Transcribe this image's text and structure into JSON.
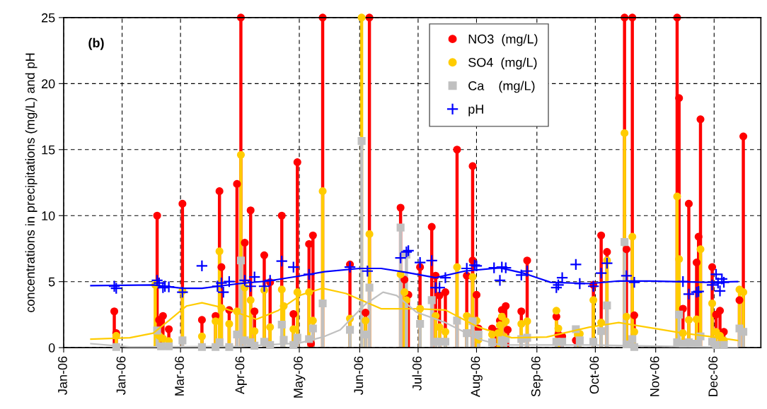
{
  "chart_data": {
    "type": "lollipop",
    "ylabel": "concentrations in precipitations (mg/L) and pH",
    "annotations": [
      "(b)"
    ],
    "xlim": [
      "2006-01-01",
      "2006-12-25"
    ],
    "ylim": [
      0,
      25
    ],
    "xticks": [
      {
        "value": "2006-01-01",
        "label": "Jan-06"
      },
      {
        "value": "2006-01-31",
        "label": "Jan-06"
      },
      {
        "value": "2006-03-02",
        "label": "Mar-06"
      },
      {
        "value": "2006-04-02",
        "label": "Apr-06"
      },
      {
        "value": "2006-05-02",
        "label": "May-06"
      },
      {
        "value": "2006-06-02",
        "label": "Jun-06"
      },
      {
        "value": "2006-07-02",
        "label": "Jul-06"
      },
      {
        "value": "2006-08-01",
        "label": "Aug-06"
      },
      {
        "value": "2006-09-01",
        "label": "Sep-06"
      },
      {
        "value": "2006-10-01",
        "label": "Oct-06"
      },
      {
        "value": "2006-11-01",
        "label": "Nov-06"
      },
      {
        "value": "2006-12-01",
        "label": "Dec-06"
      }
    ],
    "yticks": [
      0,
      5,
      10,
      15,
      20,
      25
    ],
    "grid": true,
    "legend": "top",
    "series": [
      {
        "name": "NO3  (mg/L)",
        "marker": "circle",
        "color": "#ff0000",
        "x": [
          "2006-01-27",
          "2006-01-28",
          "2006-02-18",
          "2006-02-19",
          "2006-02-20",
          "2006-02-21",
          "2006-02-24",
          "2006-03-03",
          "2006-03-13",
          "2006-03-20",
          "2006-03-22",
          "2006-03-23",
          "2006-03-27",
          "2006-03-31",
          "2006-04-02",
          "2006-04-04",
          "2006-04-07",
          "2006-04-09",
          "2006-04-14",
          "2006-04-17",
          "2006-04-23",
          "2006-04-29",
          "2006-05-01",
          "2006-05-07",
          "2006-05-08",
          "2006-05-09",
          "2006-05-14",
          "2006-05-28",
          "2006-06-05",
          "2006-06-07",
          "2006-06-23",
          "2006-06-25",
          "2006-06-27",
          "2006-07-03",
          "2006-07-09",
          "2006-07-11",
          "2006-07-13",
          "2006-07-16",
          "2006-07-22",
          "2006-07-27",
          "2006-07-30",
          "2006-07-30",
          "2006-08-01",
          "2006-08-02",
          "2006-08-09",
          "2006-08-11",
          "2006-08-13",
          "2006-08-14",
          "2006-08-16",
          "2006-08-17",
          "2006-08-24",
          "2006-08-27",
          "2006-09-11",
          "2006-09-12",
          "2006-09-14",
          "2006-09-21",
          "2006-09-30",
          "2006-10-04",
          "2006-10-07",
          "2006-10-16",
          "2006-10-17",
          "2006-10-20",
          "2006-10-21",
          "2006-11-12",
          "2006-11-13",
          "2006-11-15",
          "2006-11-18",
          "2006-11-22",
          "2006-11-23",
          "2006-11-24",
          "2006-11-30",
          "2006-12-02",
          "2006-12-04",
          "2006-12-06",
          "2006-12-14",
          "2006-12-16"
        ],
        "values": [
          2.75,
          1.1,
          10.0,
          2.1,
          2.0,
          2.4,
          1.4,
          10.9,
          2.1,
          2.4,
          11.85,
          6.1,
          2.85,
          12.4,
          25,
          7.95,
          10.4,
          2.75,
          7.0,
          4.95,
          10.0,
          2.55,
          14.05,
          7.85,
          0.3,
          8.5,
          25,
          6.3,
          2.65,
          25,
          10.6,
          5.15,
          4.0,
          6.1,
          9.15,
          5.45,
          3.95,
          4.2,
          15.0,
          5.45,
          13.75,
          6.6,
          4.0,
          1.45,
          1.45,
          1.2,
          2.05,
          2.85,
          3.15,
          1.35,
          2.75,
          6.6,
          2.35,
          1.0,
          0.85,
          0.55,
          4.75,
          8.5,
          7.25,
          25,
          7.45,
          25,
          2.45,
          25,
          18.9,
          2.95,
          10.9,
          6.45,
          8.4,
          17.3,
          6.1,
          2.5,
          2.8,
          1.2,
          3.6,
          16.0
        ]
      },
      {
        "name": "SO4  (mg/L)",
        "marker": "circle",
        "color": "#ffcc00",
        "x": [
          "2006-01-28",
          "2006-02-17",
          "2006-02-19",
          "2006-02-21",
          "2006-02-24",
          "2006-03-03",
          "2006-03-13",
          "2006-03-20",
          "2006-03-22",
          "2006-03-23",
          "2006-03-27",
          "2006-03-31",
          "2006-04-02",
          "2006-04-04",
          "2006-04-07",
          "2006-04-09",
          "2006-04-14",
          "2006-04-17",
          "2006-04-23",
          "2006-04-24",
          "2006-04-29",
          "2006-05-01",
          "2006-05-07",
          "2006-05-09",
          "2006-05-14",
          "2006-05-28",
          "2006-06-03",
          "2006-06-05",
          "2006-06-07",
          "2006-06-23",
          "2006-06-25",
          "2006-06-26",
          "2006-07-03",
          "2006-07-11",
          "2006-07-13",
          "2006-07-16",
          "2006-07-22",
          "2006-07-27",
          "2006-07-30",
          "2006-08-01",
          "2006-08-02",
          "2006-08-09",
          "2006-08-12",
          "2006-08-13",
          "2006-08-14",
          "2006-08-16",
          "2006-08-24",
          "2006-08-27",
          "2006-09-11",
          "2006-09-12",
          "2006-09-22",
          "2006-09-23",
          "2006-09-30",
          "2006-10-04",
          "2006-10-07",
          "2006-10-16",
          "2006-10-17",
          "2006-10-20",
          "2006-10-21",
          "2006-11-12",
          "2006-11-13",
          "2006-11-15",
          "2006-11-18",
          "2006-11-22",
          "2006-11-24",
          "2006-11-30",
          "2006-12-02",
          "2006-12-04",
          "2006-12-06",
          "2006-12-14",
          "2006-12-16"
        ],
        "values": [
          0.9,
          4.75,
          0.9,
          0.7,
          0.5,
          4.3,
          0.85,
          2.0,
          7.3,
          3.0,
          1.8,
          2.75,
          14.6,
          4.55,
          3.6,
          1.25,
          4.35,
          1.55,
          4.4,
          3.15,
          1.4,
          4.2,
          4.2,
          2.05,
          11.85,
          2.2,
          25,
          2.05,
          8.6,
          5.55,
          4.2,
          3.6,
          2.95,
          2.4,
          1.55,
          1.2,
          6.1,
          2.4,
          5.35,
          2.05,
          0.6,
          1.0,
          1.1,
          1.7,
          2.35,
          2.0,
          1.8,
          2.0,
          2.8,
          1.45,
          1.0,
          1.05,
          3.6,
          1.9,
          6.6,
          16.25,
          2.35,
          8.4,
          1.2,
          11.45,
          6.7,
          1.1,
          2.1,
          2.15,
          7.45,
          3.35,
          1.2,
          0.9,
          0.55,
          4.4,
          4.2
        ]
      },
      {
        "name": "Ca    (mg/L)",
        "marker": "square",
        "color": "#c0c0c0",
        "x": [
          "2006-01-28",
          "2006-02-18",
          "2006-02-20",
          "2006-02-24",
          "2006-03-03",
          "2006-03-13",
          "2006-03-20",
          "2006-03-22",
          "2006-03-27",
          "2006-03-31",
          "2006-04-02",
          "2006-04-04",
          "2006-04-07",
          "2006-04-09",
          "2006-04-14",
          "2006-04-17",
          "2006-04-23",
          "2006-04-24",
          "2006-04-29",
          "2006-05-01",
          "2006-05-07",
          "2006-05-09",
          "2006-05-14",
          "2006-05-28",
          "2006-06-03",
          "2006-06-05",
          "2006-06-07",
          "2006-06-23",
          "2006-06-26",
          "2006-07-03",
          "2006-07-09",
          "2006-07-11",
          "2006-07-13",
          "2006-07-16",
          "2006-07-22",
          "2006-07-27",
          "2006-07-30",
          "2006-08-02",
          "2006-08-09",
          "2006-08-14",
          "2006-08-16",
          "2006-08-24",
          "2006-08-27",
          "2006-09-11",
          "2006-09-14",
          "2006-09-21",
          "2006-09-23",
          "2006-09-30",
          "2006-10-04",
          "2006-10-07",
          "2006-10-16",
          "2006-10-17",
          "2006-10-20",
          "2006-10-21",
          "2006-11-12",
          "2006-11-13",
          "2006-11-15",
          "2006-11-18",
          "2006-11-22",
          "2006-11-24",
          "2006-11-30",
          "2006-12-02",
          "2006-12-06",
          "2006-12-14",
          "2006-12-16"
        ],
        "values": [
          0.05,
          1.3,
          0.1,
          0.1,
          0.55,
          0.05,
          0.05,
          0.4,
          0.05,
          1.0,
          6.6,
          0.55,
          0.4,
          0.15,
          0.45,
          0.2,
          1.75,
          0.6,
          0.2,
          0.75,
          0.65,
          1.45,
          3.35,
          1.35,
          15.65,
          1.0,
          4.55,
          9.1,
          7.05,
          1.8,
          3.6,
          0.45,
          0.45,
          0.45,
          2.05,
          1.1,
          2.0,
          1.0,
          0.4,
          0.55,
          0.65,
          0.65,
          0.75,
          0.45,
          0.45,
          1.4,
          0.55,
          0.45,
          1.25,
          3.2,
          8.0,
          0.25,
          0.65,
          0.05,
          0.4,
          2.5,
          0.3,
          0.4,
          0.3,
          0.85,
          0.45,
          0.2,
          0.2,
          1.45,
          1.2
        ]
      },
      {
        "name": "pH",
        "type": "scatter",
        "marker": "cross",
        "color": "#0000ff",
        "x": [
          "2006-01-27",
          "2006-01-28",
          "2006-02-18",
          "2006-02-19",
          "2006-02-21",
          "2006-02-22",
          "2006-02-24",
          "2006-03-03",
          "2006-03-13",
          "2006-03-21",
          "2006-03-23",
          "2006-03-24",
          "2006-03-27",
          "2006-04-04",
          "2006-04-07",
          "2006-04-09",
          "2006-04-14",
          "2006-04-17",
          "2006-04-23",
          "2006-04-29",
          "2006-05-07",
          "2006-05-28",
          "2006-06-06",
          "2006-06-23",
          "2006-06-26",
          "2006-06-27",
          "2006-07-03",
          "2006-07-09",
          "2006-07-11",
          "2006-07-13",
          "2006-07-16",
          "2006-07-27",
          "2006-07-31",
          "2006-08-01",
          "2006-08-10",
          "2006-08-13",
          "2006-08-14",
          "2006-08-16",
          "2006-08-24",
          "2006-08-27",
          "2006-09-11",
          "2006-09-12",
          "2006-09-14",
          "2006-09-21",
          "2006-09-23",
          "2006-09-30",
          "2006-10-04",
          "2006-10-07",
          "2006-10-17",
          "2006-10-21",
          "2006-11-15",
          "2006-11-18",
          "2006-11-22",
          "2006-11-23",
          "2006-11-30",
          "2006-12-02",
          "2006-12-03",
          "2006-12-04",
          "2006-12-05",
          "2006-12-06"
        ],
        "values": [
          4.65,
          4.5,
          5.1,
          4.9,
          4.55,
          4.65,
          4.6,
          4.2,
          6.2,
          4.65,
          4.9,
          4.2,
          5.0,
          5.1,
          4.65,
          5.35,
          4.65,
          5.1,
          6.55,
          6.1,
          5.55,
          6.1,
          5.8,
          6.8,
          7.25,
          7.35,
          6.45,
          6.6,
          4.55,
          4.55,
          5.3,
          6.0,
          6.25,
          6.2,
          6.05,
          5.1,
          6.1,
          6.05,
          5.5,
          5.8,
          4.55,
          4.75,
          5.3,
          6.3,
          4.85,
          4.65,
          5.65,
          6.4,
          5.45,
          4.95,
          5.0,
          4.05,
          4.2,
          4.25,
          4.75,
          5.55,
          4.9,
          4.3,
          5.2,
          4.95
        ]
      },
      {
        "type": "line",
        "marker": "none",
        "color": "#0000ff",
        "x": [
          "2006-01-15",
          "2006-02-16",
          "2006-03-03",
          "2006-03-13",
          "2006-04-01",
          "2006-04-16",
          "2006-05-01",
          "2006-05-15",
          "2006-06-02",
          "2006-06-13",
          "2006-06-26",
          "2006-07-11",
          "2006-07-26",
          "2006-08-13",
          "2006-08-25",
          "2006-09-08",
          "2006-09-28",
          "2006-10-13",
          "2006-10-29",
          "2006-11-27",
          "2006-12-13"
        ],
        "values": [
          4.7,
          4.75,
          4.5,
          4.5,
          4.85,
          5.05,
          5.4,
          5.75,
          6.0,
          6.0,
          5.7,
          5.3,
          5.8,
          6.05,
          5.65,
          4.95,
          4.85,
          5.05,
          5.05,
          4.95,
          5.0
        ]
      },
      {
        "type": "line",
        "marker": "none",
        "color": "#ffcc00",
        "x": [
          "2006-01-15",
          "2006-02-04",
          "2006-02-16",
          "2006-02-24",
          "2006-03-05",
          "2006-03-13",
          "2006-03-23",
          "2006-04-01",
          "2006-04-10",
          "2006-04-21",
          "2006-05-03",
          "2006-05-14",
          "2006-05-26",
          "2006-06-13",
          "2006-07-01",
          "2006-07-16",
          "2006-08-02",
          "2006-08-19",
          "2006-09-06",
          "2006-09-28",
          "2006-10-13",
          "2006-11-15",
          "2006-12-01",
          "2006-12-13"
        ],
        "values": [
          0.65,
          0.75,
          1.1,
          2.05,
          3.15,
          3.4,
          3.05,
          2.6,
          2.15,
          2.8,
          4.0,
          4.5,
          4.1,
          2.95,
          2.95,
          2.85,
          1.55,
          0.75,
          0.8,
          1.55,
          1.9,
          1.1,
          0.8,
          0.55
        ]
      },
      {
        "type": "line",
        "marker": "none",
        "color": "#c0c0c0",
        "x": [
          "2006-01-15",
          "2006-02-04",
          "2006-04-02",
          "2006-05-02",
          "2006-05-14",
          "2006-05-23",
          "2006-06-05",
          "2006-06-14",
          "2006-06-21",
          "2006-07-01",
          "2006-07-16",
          "2006-08-02",
          "2006-08-13",
          "2006-09-28",
          "2006-12-13"
        ],
        "values": [
          0.3,
          0.05,
          0.1,
          0.35,
          0.8,
          1.35,
          3.3,
          4.2,
          3.95,
          2.7,
          1.9,
          0.65,
          0.2,
          0.2,
          0.0
        ]
      }
    ]
  }
}
